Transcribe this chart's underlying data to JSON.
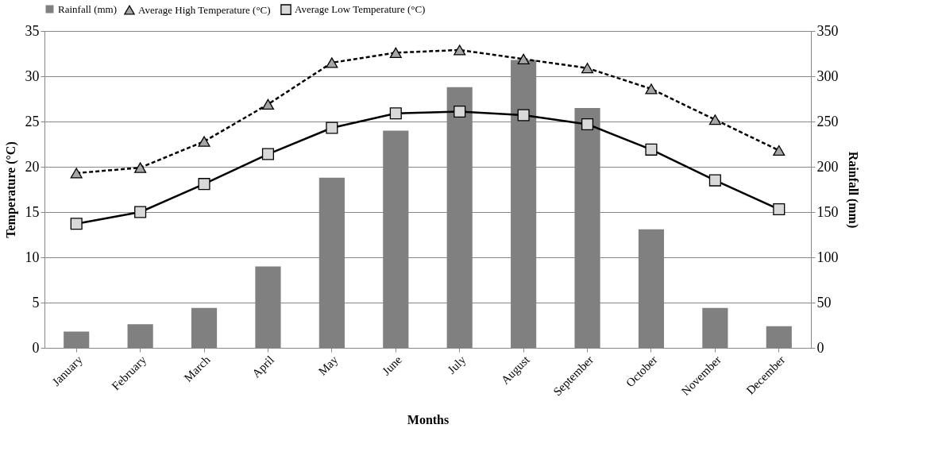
{
  "chart_data": {
    "type": "bar",
    "xlabel": "Months",
    "ylabel": "Temperature (°C)",
    "y2label": "Rainfall (mm)",
    "categories": [
      "January",
      "February",
      "March",
      "April",
      "May",
      "June",
      "July",
      "August",
      "September",
      "October",
      "November",
      "December"
    ],
    "series": [
      {
        "name": "Rainfall (mm)",
        "axis": "y2",
        "color": "#808080",
        "values": [
          18,
          26,
          44,
          90,
          188,
          240,
          288,
          318,
          265,
          131,
          44,
          24
        ]
      },
      {
        "name": "Average High Temperature (°C)",
        "type": "line",
        "color": "#000000",
        "marker": "triangle",
        "line_style": "dashed",
        "values": [
          19.3,
          19.9,
          22.8,
          26.9,
          31.5,
          32.6,
          32.9,
          31.9,
          30.9,
          28.6,
          25.2,
          21.8
        ]
      },
      {
        "name": "Average Low Temperature (°C)",
        "type": "line",
        "color": "#000000",
        "marker": "square",
        "line_style": "solid",
        "values": [
          13.7,
          15.0,
          18.1,
          21.4,
          24.3,
          25.9,
          26.1,
          25.7,
          24.7,
          21.9,
          18.5,
          15.3
        ]
      }
    ],
    "ylim": [
      0,
      35
    ],
    "yticks": [
      0,
      5,
      10,
      15,
      20,
      25,
      30,
      35
    ],
    "y2lim": [
      0,
      350
    ],
    "y2ticks": [
      0,
      50,
      100,
      150,
      200,
      250,
      300,
      350
    ],
    "grid": "y",
    "legend": "top"
  }
}
